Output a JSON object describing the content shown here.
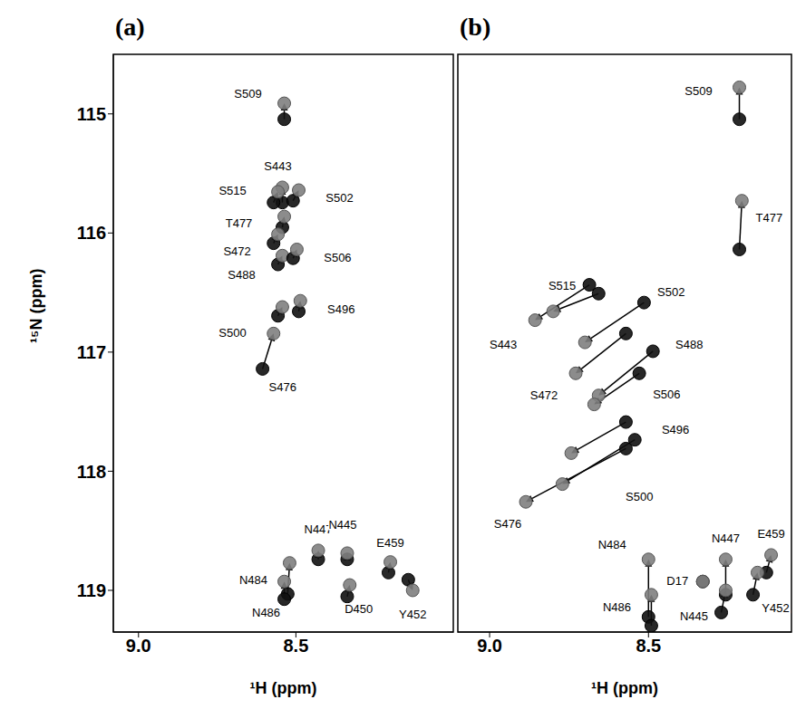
{
  "chart_data": [
    {
      "type": "scatter",
      "title": "(a)",
      "x_label": "¹H (ppm)",
      "y_label": "¹⁵N (ppm)",
      "xlim": [
        9.08,
        8.0
      ],
      "xticks": [
        {
          "value": 9,
          "label": "9.0"
        },
        {
          "value": 8.5,
          "label": "8.5"
        }
      ],
      "ylim": [
        114.5,
        119.35
      ],
      "yticks": [
        115,
        116,
        117,
        118,
        119
      ],
      "color": "#808080",
      "marker": "circle",
      "peaks": [
        {
          "label": "S509",
          "start": [
            8.537,
            115.045
          ],
          "end": [
            8.537,
            114.911
          ]
        },
        {
          "label": "S443",
          "start": [
            8.543,
            115.744
          ],
          "end": [
            8.543,
            115.617
          ]
        },
        {
          "label": "S515",
          "start": [
            8.571,
            115.744
          ],
          "end": [
            8.557,
            115.654
          ]
        },
        {
          "label": "S502",
          "start": [
            8.509,
            115.729
          ],
          "end": [
            8.491,
            115.64
          ]
        },
        {
          "label": "T477",
          "start": [
            8.543,
            115.952
          ],
          "end": [
            8.537,
            115.862
          ]
        },
        {
          "label": "S472",
          "start": [
            8.571,
            116.086
          ],
          "end": [
            8.557,
            116.011
          ]
        },
        {
          "label": "S488",
          "start": [
            8.557,
            116.264
          ],
          "end": [
            8.543,
            116.19
          ]
        },
        {
          "label": "S506",
          "start": [
            8.509,
            116.212
          ],
          "end": [
            8.497,
            116.138
          ]
        },
        {
          "label": "S500",
          "start": [
            8.557,
            116.695
          ],
          "end": [
            8.543,
            116.621
          ]
        },
        {
          "label": "S496",
          "start": [
            8.491,
            116.658
          ],
          "end": [
            8.486,
            116.569
          ]
        },
        {
          "label": "S476",
          "start": [
            8.606,
            117.141
          ],
          "end": [
            8.571,
            116.844
          ]
        },
        {
          "label": "N484",
          "start": [
            8.526,
            119.03
          ],
          "end": [
            8.52,
            118.77
          ]
        },
        {
          "label": "N486",
          "start": [
            8.537,
            119.074
          ],
          "end": [
            8.537,
            118.926
          ]
        },
        {
          "label": "N447",
          "start": [
            8.429,
            118.74
          ],
          "end": [
            8.429,
            118.665
          ]
        },
        {
          "label": "N445",
          "start": [
            8.337,
            118.74
          ],
          "end": [
            8.337,
            118.688
          ]
        },
        {
          "label": "D450",
          "start": [
            8.337,
            119.052
          ],
          "end": [
            8.329,
            118.955
          ]
        },
        {
          "label": "E459",
          "start": [
            8.206,
            118.851
          ],
          "end": [
            8.2,
            118.762
          ]
        },
        {
          "label": "Y452",
          "start": [
            8.143,
            118.911
          ],
          "end": [
            8.129,
            119.0
          ]
        }
      ]
    },
    {
      "type": "scatter",
      "title": "(b)",
      "x_label": "¹H (ppm)",
      "tick_labels": "x",
      "xlim": [
        9.1,
        8.05
      ],
      "xticks": [
        {
          "value": 9,
          "label": "9.0"
        },
        {
          "value": 8.5,
          "label": "8.5"
        }
      ],
      "ylim": [
        114.5,
        119.35
      ],
      "color": "#808080",
      "marker": "circle",
      "peaks": [
        {
          "label": "S509",
          "start": [
            8.214,
            115.045
          ],
          "end": [
            8.214,
            114.777
          ]
        },
        {
          "label": "T477",
          "start": [
            8.214,
            116.138
          ],
          "end": [
            8.206,
            115.729
          ]
        },
        {
          "label": "S443",
          "start": [
            8.686,
            116.435
          ],
          "end": [
            8.857,
            116.732
          ]
        },
        {
          "label": "S515",
          "start": [
            8.657,
            116.509
          ],
          "end": [
            8.8,
            116.658
          ]
        },
        {
          "label": "S502",
          "start": [
            8.514,
            116.584
          ],
          "end": [
            8.7,
            116.918
          ]
        },
        {
          "label": "S472",
          "start": [
            8.571,
            116.844
          ],
          "end": [
            8.729,
            117.178
          ]
        },
        {
          "label": "S488",
          "start": [
            8.486,
            116.993
          ],
          "end": [
            8.657,
            117.364
          ]
        },
        {
          "label": "S506",
          "start": [
            8.529,
            117.178
          ],
          "end": [
            8.671,
            117.439
          ]
        },
        {
          "label": "S496",
          "start": [
            8.571,
            117.587
          ],
          "end": [
            8.743,
            117.848
          ]
        },
        {
          "label": "S500",
          "start": [
            8.543,
            117.736
          ],
          "end": [
            8.771,
            118.108
          ]
        },
        {
          "label": "S476",
          "start": [
            8.571,
            117.81
          ],
          "end": [
            8.886,
            118.257
          ]
        },
        {
          "label": "N484",
          "start": [
            8.5,
            119.223
          ],
          "end": [
            8.5,
            118.74
          ]
        },
        {
          "label": "N486",
          "start": [
            8.491,
            119.297
          ],
          "end": [
            8.491,
            119.037
          ]
        },
        {
          "label": "D17",
          "start": [
            8.329,
            118.926
          ],
          "end": [
            8.329,
            118.926
          ]
        },
        {
          "label": "N447",
          "start": [
            8.257,
            119.037
          ],
          "end": [
            8.257,
            118.74
          ]
        },
        {
          "label": "N445",
          "start": [
            8.271,
            119.186
          ],
          "end": [
            8.257,
            119.0
          ]
        },
        {
          "label": "E459",
          "start": [
            8.129,
            118.851
          ],
          "end": [
            8.114,
            118.703
          ]
        },
        {
          "label": "Y452",
          "start": [
            8.171,
            119.037
          ],
          "end": [
            8.157,
            118.851
          ]
        }
      ]
    }
  ]
}
